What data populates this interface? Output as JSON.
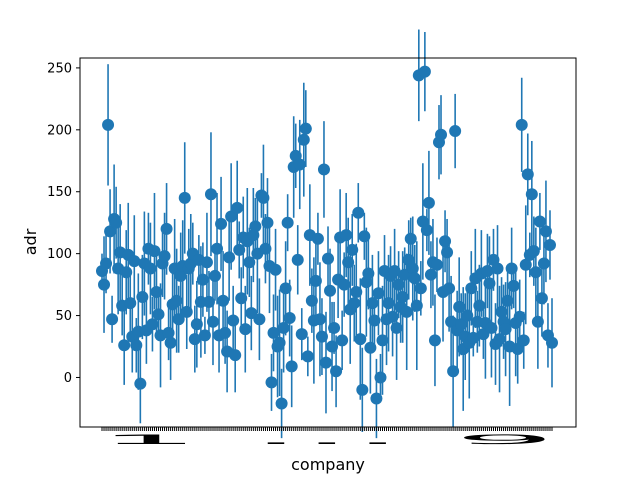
{
  "chart_data": {
    "type": "scatter",
    "title": "",
    "xlabel": "company",
    "ylabel": "adr",
    "ylim": [
      -40,
      258
    ],
    "yticks": [
      0,
      50,
      100,
      150,
      200,
      250
    ],
    "grid": false,
    "marker_color": "#1f77b4",
    "x_tick_text": "1 ... 9",
    "series": [
      {
        "values": [
          86,
          75,
          92,
          204,
          118,
          47,
          128,
          125,
          88,
          101,
          58,
          26,
          85,
          99,
          60,
          33,
          94,
          26,
          37,
          -5,
          65,
          92,
          38,
          104,
          88,
          43,
          102,
          69,
          51,
          34,
          92,
          98,
          120,
          36,
          28,
          59,
          88,
          62,
          47,
          82,
          90,
          145,
          53,
          88,
          92,
          100,
          31,
          43,
          95,
          61,
          79,
          34,
          93,
          61,
          148,
          45,
          82,
          104,
          34,
          124,
          62,
          36,
          21,
          97,
          130,
          46,
          18,
          137,
          103,
          64,
          113,
          39,
          110,
          93,
          52,
          115,
          122,
          100,
          47,
          147,
          145,
          104,
          125,
          90,
          -4,
          36,
          87,
          25,
          28,
          -21,
          40,
          72,
          125,
          48,
          9,
          170,
          179,
          95,
          172,
          35,
          192,
          201,
          17,
          115,
          62,
          46,
          78,
          112,
          47,
          33,
          168,
          12,
          96,
          70,
          25,
          40,
          5,
          79,
          113,
          30,
          75,
          115,
          93,
          55,
          103,
          60,
          69,
          133,
          31,
          -10,
          114,
          77,
          84,
          24,
          60,
          46,
          -17,
          68,
          0,
          30,
          86,
          47,
          60,
          82,
          49,
          86,
          40,
          75,
          57,
          65,
          83,
          53,
          95,
          112,
          88,
          80,
          58,
          244,
          72,
          126,
          247,
          119,
          141,
          83,
          93,
          30,
          91,
          190,
          196,
          69,
          110,
          101,
          72,
          45,
          5,
          199,
          38,
          57,
          43,
          23,
          33,
          50,
          28,
          72,
          32,
          80,
          45,
          58,
          84,
          35,
          44,
          86,
          76,
          40,
          95,
          27,
          88,
          31,
          53,
          45,
          39,
          62,
          25,
          88,
          74,
          44,
          23,
          49,
          204,
          30,
          91,
          164,
          99,
          148,
          102,
          85,
          45,
          126,
          64,
          92,
          118,
          34,
          107,
          28
        ]
      }
    ]
  }
}
